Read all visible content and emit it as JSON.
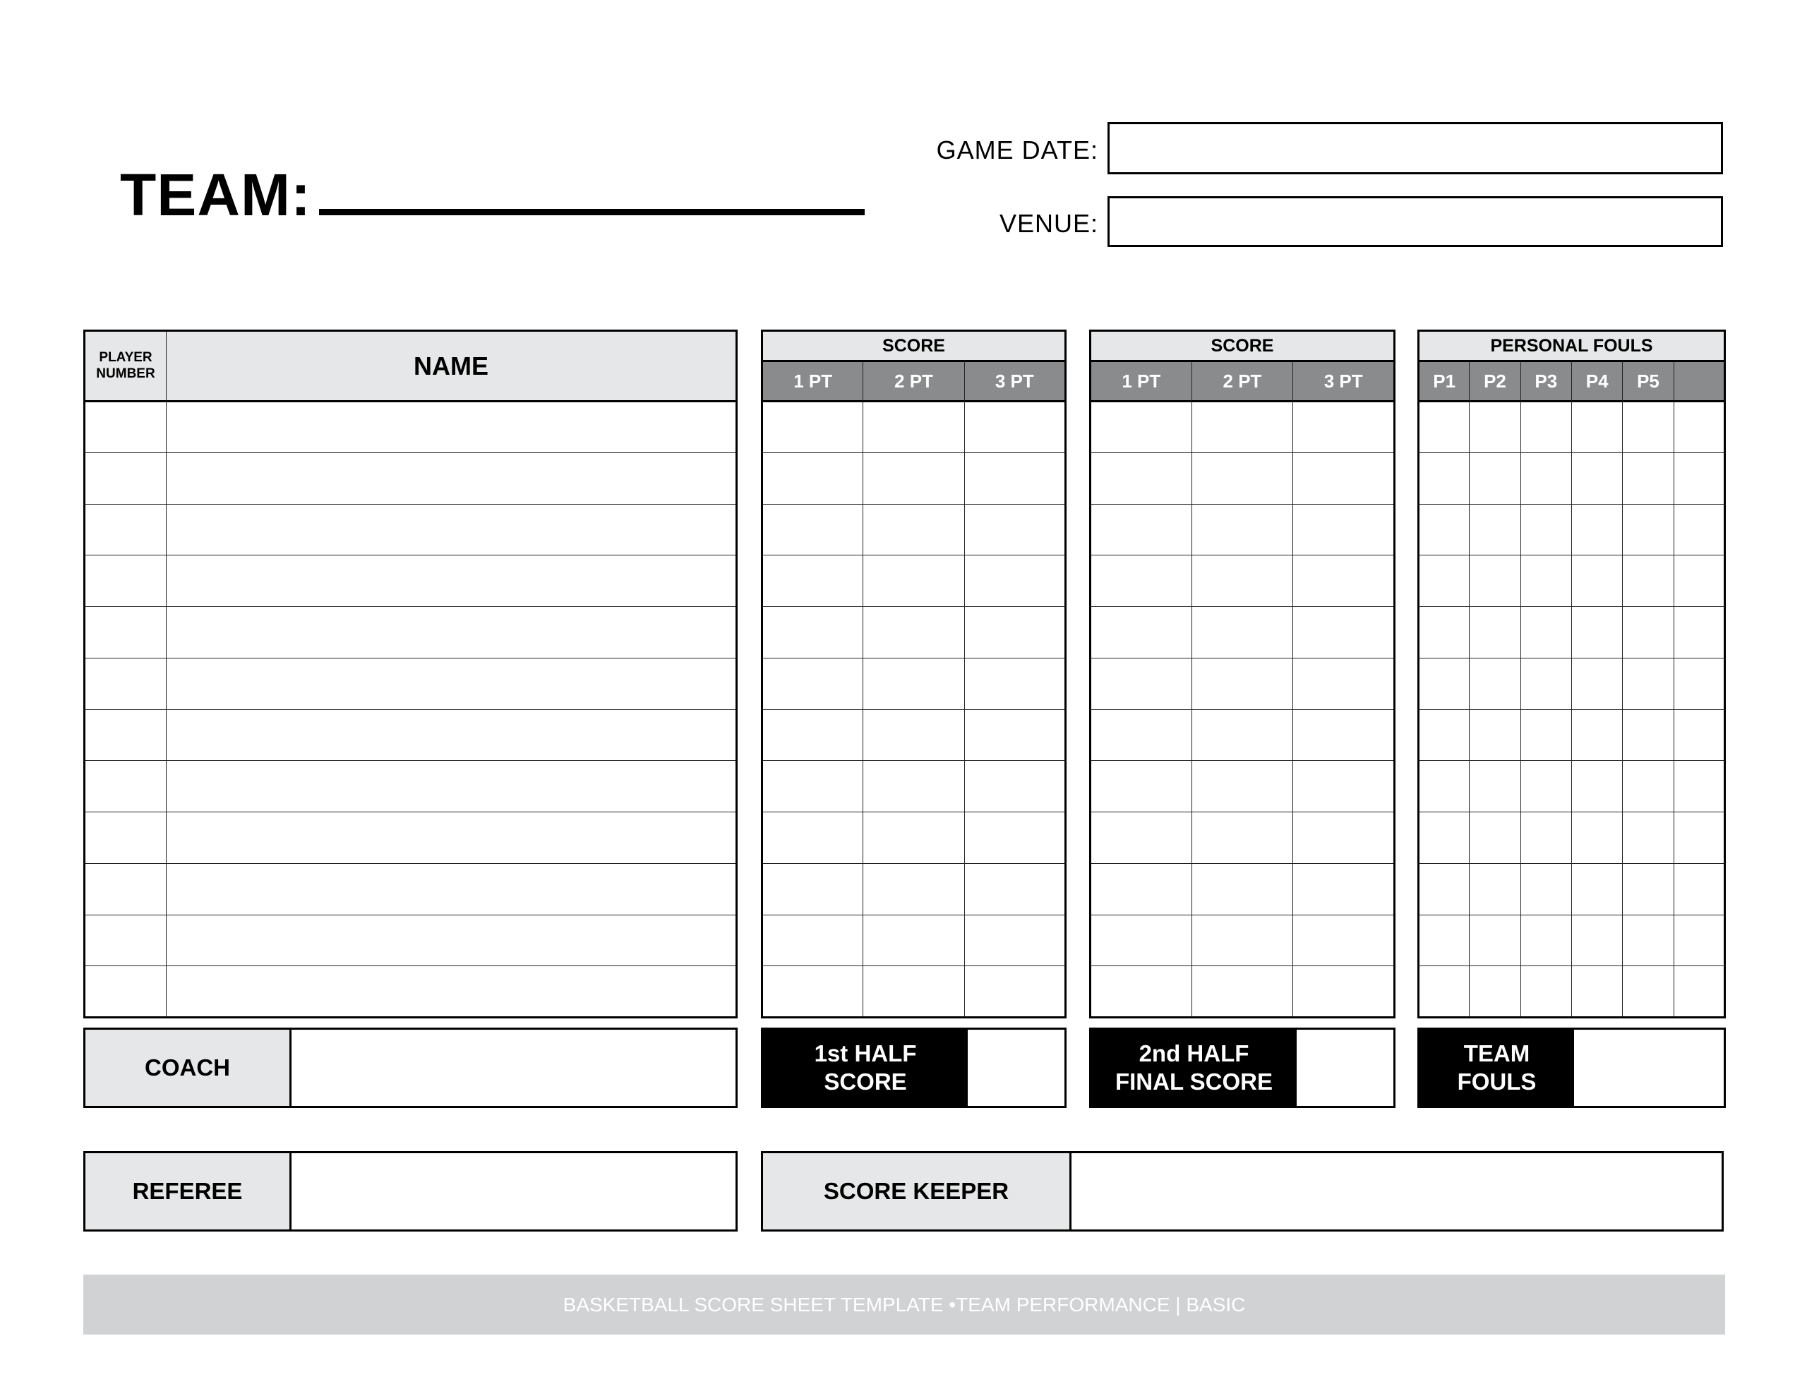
{
  "header": {
    "team_label": "TEAM:",
    "game_date_label": "GAME DATE:",
    "venue_label": "VENUE:"
  },
  "players_table": {
    "number_header": "PLAYER NUMBER",
    "name_header": "NAME",
    "rows": 12
  },
  "score_table_1": {
    "title": "SCORE",
    "columns": [
      "1 PT",
      "2 PT",
      "3 PT"
    ]
  },
  "score_table_2": {
    "title": "SCORE",
    "columns": [
      "1 PT",
      "2 PT",
      "3 PT"
    ]
  },
  "fouls_table": {
    "title": "PERSONAL FOULS",
    "columns": [
      "P1",
      "P2",
      "P3",
      "P4",
      "P5",
      ""
    ]
  },
  "summary": {
    "coach": "COACH",
    "first_half": "1st HALF\nSCORE",
    "second_half": "2nd HALF\nFINAL SCORE",
    "team_fouls": "TEAM\nFOULS",
    "referee": "REFEREE",
    "score_keeper": "SCORE KEEPER"
  },
  "footer": "BASKETBALL SCORE SHEET TEMPLATE •TEAM PERFORMANCE | BASIC",
  "colors": {
    "header_light": "#e6e7e8",
    "header_dark": "#8a8b8d",
    "footer": "#d1d2d4"
  }
}
